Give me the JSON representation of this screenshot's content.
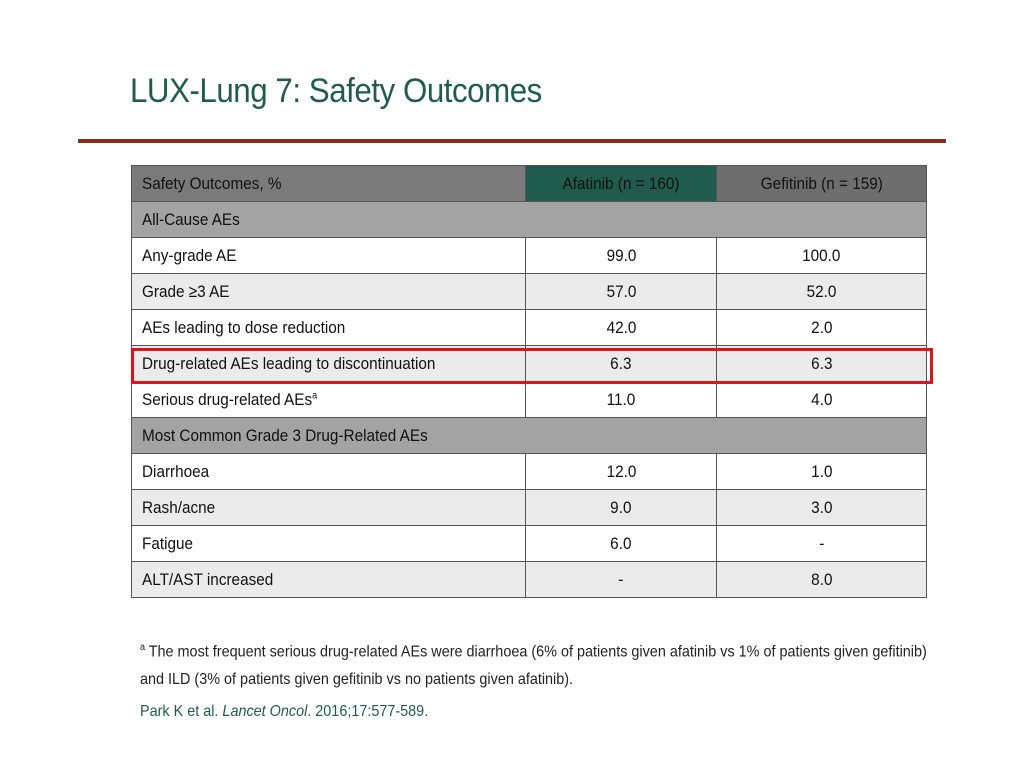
{
  "slide": {
    "title": "LUX-Lung 7: Safety Outcomes",
    "table": {
      "headers": {
        "label": "Safety Outcomes, %",
        "afatinib": "Afatinib (n = 160)",
        "gefitinib": "Gefitinib (n = 159)"
      },
      "sections": [
        {
          "title": "All-Cause AEs",
          "rows": [
            {
              "label": "Any-grade AE",
              "sup": "",
              "afatinib": "99.0",
              "gefitinib": "100.0"
            },
            {
              "label": "Grade ≥3 AE",
              "sup": "",
              "afatinib": "57.0",
              "gefitinib": "52.0"
            },
            {
              "label": "AEs leading to dose reduction",
              "sup": "",
              "afatinib": "42.0",
              "gefitinib": "2.0"
            },
            {
              "label": "Drug-related AEs leading to discontinuation",
              "sup": "",
              "afatinib": "6.3",
              "gefitinib": "6.3"
            },
            {
              "label": "Serious drug-related AEs",
              "sup": "a",
              "afatinib": "11.0",
              "gefitinib": "4.0"
            }
          ]
        },
        {
          "title": "Most Common Grade 3 Drug-Related AEs",
          "rows": [
            {
              "label": "Diarrhoea",
              "sup": "",
              "afatinib": "12.0",
              "gefitinib": "1.0"
            },
            {
              "label": "Rash/acne",
              "sup": "",
              "afatinib": "9.0",
              "gefitinib": "3.0"
            },
            {
              "label": "Fatigue",
              "sup": "",
              "afatinib": "6.0",
              "gefitinib": "-"
            },
            {
              "label": "ALT/AST increased",
              "sup": "",
              "afatinib": "-",
              "gefitinib": "8.0"
            }
          ]
        }
      ]
    },
    "footnote": {
      "marker": "a",
      "text": " The most frequent serious drug-related AEs were diarrhoea (6% of patients given afatinib vs 1% of patients given gefitinib) and ILD (3% of patients given gefitinib vs no patients given afatinib)."
    },
    "citation": {
      "authors": "Park K et al. ",
      "journal": "Lancet Oncol",
      "details": ". 2016;17:577-589."
    },
    "colors": {
      "title": "#1f5c4f",
      "rule": "#8b2a1e",
      "afatinib_header": "#1f5c4f",
      "gefitinib_header": "#6e6e6e",
      "highlight_box": "#e0131a"
    }
  }
}
